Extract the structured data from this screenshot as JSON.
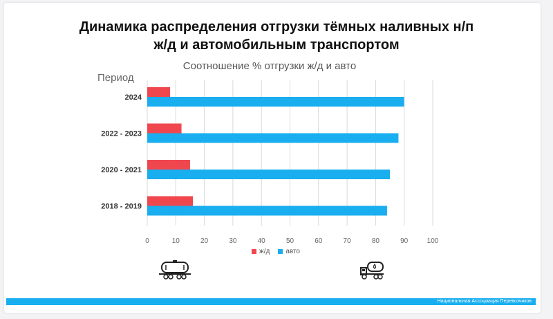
{
  "title_line1": "Динамика распределения отгрузки тёмных наливных н/п",
  "title_line2": "ж/д и автомобильным транспортом",
  "footer": "Национальная Ассоциация Перевозчиков",
  "icons": {
    "rail": "rail-tank-car-icon",
    "truck": "tank-truck-icon"
  },
  "chart_data": {
    "type": "bar",
    "orientation": "horizontal",
    "title": "Соотношение % отгрузки ж/д и авто",
    "ylabel": "Период",
    "xlabel": "",
    "categories": [
      "2024",
      "2022 - 2023",
      "2020 - 2021",
      "2018 - 2019"
    ],
    "series": [
      {
        "name": "ж/д",
        "color": "#f0474f",
        "values": [
          8,
          12,
          15,
          16
        ]
      },
      {
        "name": "авто",
        "color": "#19aeef",
        "values": [
          90,
          88,
          85,
          84
        ]
      }
    ],
    "xlim": [
      0,
      100
    ],
    "xticks": [
      0,
      10,
      20,
      30,
      40,
      50,
      60,
      70,
      80,
      90,
      100
    ],
    "grid": true,
    "legend": "bottom"
  }
}
